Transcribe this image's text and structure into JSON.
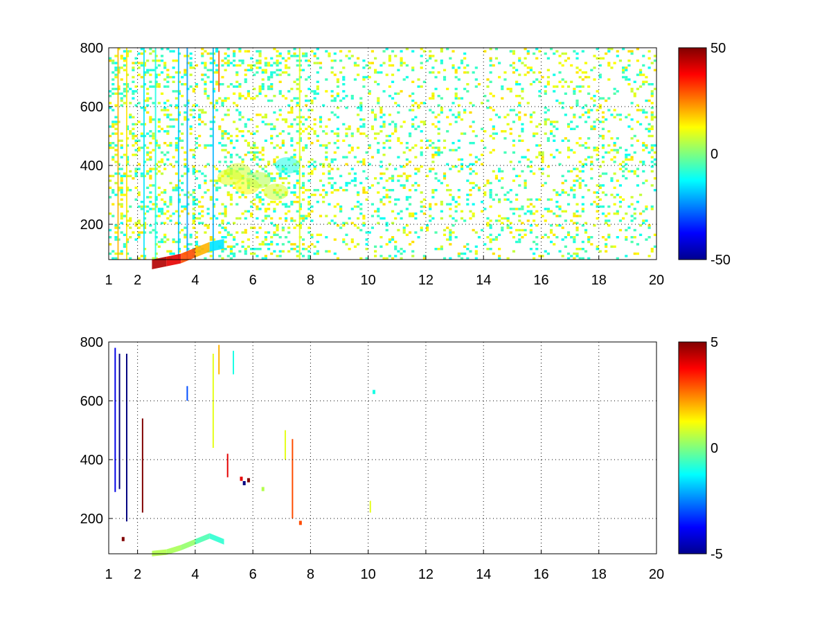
{
  "chart_data": [
    {
      "type": "heatmap",
      "title": "",
      "xlabel": "",
      "ylabel": "",
      "xlim": [
        1,
        20
      ],
      "ylim": [
        80,
        800
      ],
      "xticks": [
        1,
        2,
        4,
        6,
        8,
        10,
        12,
        14,
        16,
        18,
        20
      ],
      "yticks": [
        200,
        400,
        600,
        800
      ],
      "grid": true,
      "colormap": "jet",
      "clim": [
        -50,
        50
      ],
      "colorbar_ticks": [
        50,
        0,
        -50
      ],
      "note": "sparse scattered cells across full range; dense near-vertical streaks at low x; bright warm band near y≈80–160 for x≈2.5–4.5; green cluster near x≈5–7, y≈300–400",
      "cells": [
        {
          "x": 1.3,
          "y0": 80,
          "y1": 800,
          "value": 20
        },
        {
          "x": 1.6,
          "y0": 80,
          "y1": 800,
          "value": 15
        },
        {
          "x": 2.2,
          "y0": 80,
          "y1": 800,
          "value": -15
        },
        {
          "x": 2.6,
          "y0": 80,
          "y1": 800,
          "value": -10
        },
        {
          "x": 3.4,
          "y0": 80,
          "y1": 800,
          "value": -18
        },
        {
          "x": 3.7,
          "y0": 80,
          "y1": 800,
          "value": -22
        },
        {
          "x": 4.6,
          "y0": 80,
          "y1": 800,
          "value": -20
        },
        {
          "x": 4.8,
          "y0": 650,
          "y1": 790,
          "value": 30
        },
        {
          "x": 7.6,
          "y0": 80,
          "y1": 800,
          "value": 10
        }
      ],
      "band": [
        {
          "x": 2.5,
          "y": 80,
          "value": 40
        },
        {
          "x": 3.0,
          "y": 90,
          "value": 45
        },
        {
          "x": 3.5,
          "y": 100,
          "value": 40
        },
        {
          "x": 4.0,
          "y": 120,
          "value": 30
        },
        {
          "x": 4.5,
          "y": 140,
          "value": 20
        },
        {
          "x": 5.0,
          "y": 150,
          "value": -15
        }
      ],
      "cluster": [
        {
          "x": 5.2,
          "y": 360,
          "value": 10
        },
        {
          "x": 5.5,
          "y": 380,
          "value": 8
        },
        {
          "x": 5.8,
          "y": 330,
          "value": 12
        },
        {
          "x": 6.2,
          "y": 350,
          "value": 5
        },
        {
          "x": 6.8,
          "y": 310,
          "value": 8
        },
        {
          "x": 7.2,
          "y": 400,
          "value": -10
        }
      ],
      "scatter_seed": 7,
      "scatter_density": 0.16
    },
    {
      "type": "heatmap",
      "title": "",
      "xlabel": "",
      "ylabel": "",
      "xlim": [
        1,
        20
      ],
      "ylim": [
        80,
        800
      ],
      "xticks": [
        1,
        2,
        4,
        6,
        8,
        10,
        12,
        14,
        16,
        18,
        20
      ],
      "yticks": [
        200,
        400,
        600,
        800
      ],
      "grid": true,
      "colormap": "jet",
      "clim": [
        -5,
        5
      ],
      "colorbar_ticks": [
        5,
        0,
        -5
      ],
      "segments": [
        {
          "x": 1.2,
          "y0": 290,
          "y1": 780,
          "value": -4
        },
        {
          "x": 1.35,
          "y0": 300,
          "y1": 760,
          "value": -5
        },
        {
          "x": 1.6,
          "y0": 190,
          "y1": 760,
          "value": -5
        },
        {
          "x": 2.15,
          "y0": 220,
          "y1": 540,
          "value": 5
        },
        {
          "x": 3.7,
          "y0": 600,
          "y1": 650,
          "value": -3
        },
        {
          "x": 4.6,
          "y0": 440,
          "y1": 760,
          "value": 1
        },
        {
          "x": 4.8,
          "y0": 690,
          "y1": 790,
          "value": 2
        },
        {
          "x": 5.1,
          "y0": 340,
          "y1": 420,
          "value": 4
        },
        {
          "x": 5.3,
          "y0": 690,
          "y1": 770,
          "value": -1
        },
        {
          "x": 7.1,
          "y0": 400,
          "y1": 500,
          "value": 1
        },
        {
          "x": 7.35,
          "y0": 200,
          "y1": 470,
          "value": 3
        },
        {
          "x": 10.05,
          "y0": 220,
          "y1": 260,
          "value": 1
        }
      ],
      "points": [
        {
          "x": 5.6,
          "y": 335,
          "value": 4
        },
        {
          "x": 5.7,
          "y": 320,
          "value": -5
        },
        {
          "x": 5.85,
          "y": 330,
          "value": 5
        },
        {
          "x": 6.35,
          "y": 300,
          "value": 0.5
        },
        {
          "x": 7.65,
          "y": 185,
          "value": 3
        },
        {
          "x": 10.2,
          "y": 630,
          "value": -1
        },
        {
          "x": 1.5,
          "y": 130,
          "value": 5
        }
      ],
      "band": [
        {
          "x": 2.5,
          "y": 90,
          "value": 0.5
        },
        {
          "x": 3.0,
          "y": 95,
          "value": 0.5
        },
        {
          "x": 3.5,
          "y": 110,
          "value": 0.4
        },
        {
          "x": 4.0,
          "y": 130,
          "value": 0.2
        },
        {
          "x": 4.5,
          "y": 150,
          "value": -0.5
        },
        {
          "x": 5.0,
          "y": 130,
          "value": -0.8
        }
      ]
    }
  ]
}
